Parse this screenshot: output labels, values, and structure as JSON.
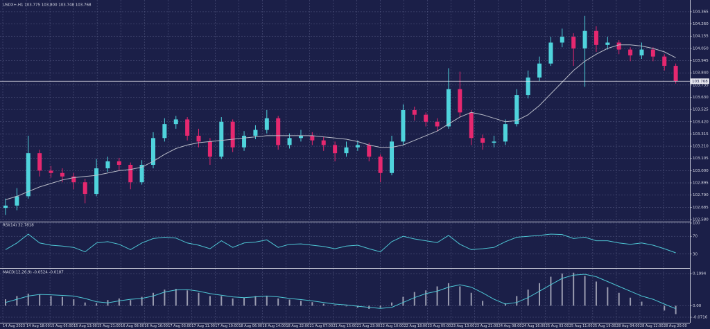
{
  "chart_data": [
    {
      "type": "candlestick",
      "title": "USDX+,H1  103.775 103.800 103.748 103.768",
      "up_color": "#4fd3dc",
      "down_color": "#e6286f",
      "ma_color": "#b9bcc8",
      "ylim": [
        102.562,
        104.436
      ],
      "yticks": [
        {
          "value": 102.58,
          "label": "102.580"
        },
        102.685,
        {
          "value": 102.79,
          "label": "102.790"
        },
        102.895,
        {
          "value": 103,
          "label": "103.000"
        },
        103.105,
        {
          "value": 103.21,
          "label": "103.210"
        },
        103.315,
        {
          "value": 103.42,
          "label": "103.420"
        },
        103.525,
        {
          "value": 103.63,
          "label": "103.630"
        },
        103.735,
        {
          "value": 103.84,
          "label": "103.840"
        },
        103.945,
        {
          "value": 104.05,
          "label": "104.050"
        },
        104.155,
        {
          "value": 104.26,
          "label": "104.260"
        },
        104.365
      ],
      "current_price": 103.768,
      "xtick_labels": [
        "14 Aug 2023",
        "14 Aug 18:00",
        "15 Aug 05:00",
        "15 Aug 13:00",
        "15 Aug 21:00",
        "16 Aug 08:00",
        "16 Aug 16:00",
        "17 Aug 03:00",
        "17 Aug 11:00",
        "17 Aug 19:00",
        "18 Aug 06:00",
        "18 Aug 14:00",
        "18 Aug 22:00",
        "21 Aug 07:00",
        "21 Aug 15:00",
        "21 Aug 23:00",
        "22 Aug 10:00",
        "22 Aug 18:00",
        "23 Aug 05:00",
        "23 Aug 13:00",
        "23 Aug 21:00",
        "24 Aug 08:00",
        "24 Aug 16:00",
        "25 Aug 03:00",
        "25 Aug 11:00",
        "25 Aug 19:00",
        "28 Aug 04:00",
        "28 Aug 12:00",
        "28 Aug 20:00"
      ],
      "open": [
        102.68,
        102.7,
        102.78,
        103.15,
        103.0,
        102.98,
        102.95,
        102.9,
        102.8,
        103.02,
        103.08,
        103.05,
        102.9,
        103.05,
        103.28,
        103.4,
        103.44,
        103.3,
        103.25,
        103.12,
        103.42,
        103.2,
        103.3,
        103.35,
        103.45,
        103.22,
        103.28,
        103.3,
        103.26,
        103.22,
        103.15,
        103.2,
        103.22,
        103.12,
        102.98,
        103.25,
        103.52,
        103.48,
        103.42,
        103.38,
        103.7,
        103.5,
        103.28,
        103.24,
        103.25,
        103.4,
        103.65,
        103.8,
        103.92,
        104.1,
        104.15,
        104.05,
        104.2,
        104.08,
        104.1,
        104.04,
        103.99,
        104.04,
        103.98,
        103.9
      ],
      "high": [
        102.76,
        102.85,
        103.3,
        103.18,
        103.04,
        103.02,
        102.98,
        102.93,
        103.1,
        103.12,
        103.11,
        103.07,
        103.09,
        103.33,
        103.45,
        103.47,
        103.46,
        103.36,
        103.28,
        103.46,
        103.44,
        103.34,
        103.39,
        103.52,
        103.47,
        103.32,
        103.35,
        103.33,
        103.29,
        103.25,
        103.25,
        103.26,
        103.24,
        103.14,
        103.3,
        103.57,
        103.55,
        103.5,
        103.45,
        103.88,
        103.85,
        103.52,
        103.31,
        103.3,
        103.44,
        103.7,
        103.86,
        103.98,
        104.15,
        104.22,
        104.18,
        104.33,
        104.24,
        104.15,
        104.12,
        104.06,
        104.1,
        104.06,
        104.0,
        103.92
      ],
      "low": [
        102.62,
        102.66,
        102.76,
        102.95,
        102.94,
        102.9,
        102.84,
        102.72,
        102.78,
        102.99,
        103.0,
        102.84,
        102.88,
        103.02,
        103.25,
        103.36,
        103.26,
        103.2,
        103.05,
        103.1,
        103.16,
        103.17,
        103.27,
        103.32,
        103.18,
        103.19,
        103.25,
        103.22,
        103.17,
        103.08,
        103.12,
        103.17,
        103.08,
        102.9,
        102.96,
        103.22,
        103.43,
        103.38,
        103.34,
        103.36,
        103.46,
        103.22,
        103.18,
        103.2,
        103.22,
        103.38,
        103.62,
        103.77,
        103.9,
        104.06,
        103.9,
        103.72,
        104.02,
        104.04,
        104.0,
        103.94,
        103.96,
        103.94,
        103.86,
        103.748
      ],
      "close": [
        102.7,
        102.78,
        103.15,
        103.0,
        102.98,
        102.95,
        102.9,
        102.8,
        103.02,
        103.08,
        103.05,
        102.9,
        103.05,
        103.28,
        103.4,
        103.44,
        103.3,
        103.25,
        103.12,
        103.42,
        103.2,
        103.3,
        103.35,
        103.45,
        103.22,
        103.28,
        103.3,
        103.26,
        103.22,
        103.15,
        103.2,
        103.22,
        103.12,
        102.98,
        103.25,
        103.52,
        103.48,
        103.42,
        103.38,
        103.7,
        103.5,
        103.28,
        103.24,
        103.25,
        103.4,
        103.65,
        103.8,
        103.92,
        104.1,
        104.15,
        104.05,
        104.2,
        104.08,
        104.1,
        104.04,
        103.99,
        104.04,
        103.98,
        103.9,
        103.768
      ],
      "ma": [
        102.75,
        102.78,
        102.82,
        102.86,
        102.89,
        102.92,
        102.94,
        102.95,
        102.96,
        102.98,
        103.0,
        103.01,
        103.03,
        103.08,
        103.14,
        103.19,
        103.22,
        103.24,
        103.25,
        103.26,
        103.27,
        103.28,
        103.29,
        103.3,
        103.3,
        103.3,
        103.3,
        103.3,
        103.29,
        103.28,
        103.27,
        103.25,
        103.22,
        103.2,
        103.2,
        103.22,
        103.26,
        103.3,
        103.34,
        103.4,
        103.46,
        103.5,
        103.48,
        103.45,
        103.42,
        103.43,
        103.48,
        103.56,
        103.66,
        103.76,
        103.86,
        103.94,
        104.0,
        104.05,
        104.08,
        104.08,
        104.07,
        104.05,
        104.02,
        103.97
      ]
    },
    {
      "type": "line",
      "title": "RSI(14) 32.7818",
      "color": "#4fc8d6",
      "ylim": [
        0,
        100
      ],
      "yticks": [
        100,
        70,
        30
      ],
      "values": [
        40,
        55,
        75,
        55,
        50,
        48,
        45,
        35,
        55,
        58,
        52,
        40,
        55,
        65,
        68,
        66,
        55,
        50,
        42,
        60,
        45,
        55,
        57,
        62,
        45,
        52,
        53,
        50,
        47,
        42,
        48,
        50,
        42,
        35,
        58,
        70,
        64,
        60,
        56,
        72,
        52,
        40,
        42,
        45,
        58,
        68,
        70,
        72,
        75,
        74,
        65,
        68,
        60,
        60,
        55,
        52,
        55,
        50,
        42,
        32.7818
      ]
    },
    {
      "type": "macd",
      "title": "MACD(12,26,9) -0.0524 -0.0187",
      "hist_color": "#9a9cb0",
      "signal_color": "#4fc8d6",
      "ylim": [
        -0.106,
        0.221
      ],
      "yticks": [
        0.1994,
        {
          "value": 0,
          "label": "0.00"
        },
        -0.0716
      ],
      "histogram": [
        0.04,
        0.06,
        0.075,
        0.07,
        0.06,
        0.055,
        0.04,
        0.02,
        0.015,
        0.035,
        0.045,
        0.035,
        0.055,
        0.08,
        0.1,
        0.105,
        0.095,
        0.08,
        0.06,
        0.06,
        0.045,
        0.05,
        0.06,
        0.06,
        0.045,
        0.038,
        0.03,
        0.022,
        0.012,
        0.004,
        -0.004,
        -0.012,
        -0.02,
        -0.012,
        0.02,
        0.055,
        0.085,
        0.095,
        0.12,
        0.14,
        0.12,
        0.08,
        0.03,
        0.0,
        0.015,
        0.06,
        0.1,
        0.14,
        0.18,
        0.2,
        0.205,
        0.185,
        0.15,
        0.115,
        0.08,
        0.05,
        0.025,
        0.0,
        -0.03,
        -0.0524
      ],
      "signal": [
        0.02,
        0.04,
        0.06,
        0.07,
        0.068,
        0.064,
        0.06,
        0.045,
        0.025,
        0.018,
        0.03,
        0.04,
        0.045,
        0.06,
        0.085,
        0.098,
        0.1,
        0.09,
        0.075,
        0.065,
        0.055,
        0.05,
        0.055,
        0.06,
        0.055,
        0.045,
        0.038,
        0.03,
        0.02,
        0.01,
        0.005,
        -0.003,
        -0.01,
        -0.017,
        -0.01,
        0.02,
        0.05,
        0.075,
        0.09,
        0.115,
        0.13,
        0.115,
        0.08,
        0.04,
        0.01,
        0.02,
        0.05,
        0.09,
        0.13,
        0.17,
        0.19,
        0.195,
        0.18,
        0.15,
        0.12,
        0.09,
        0.06,
        0.04,
        0.01,
        -0.0187
      ]
    }
  ]
}
